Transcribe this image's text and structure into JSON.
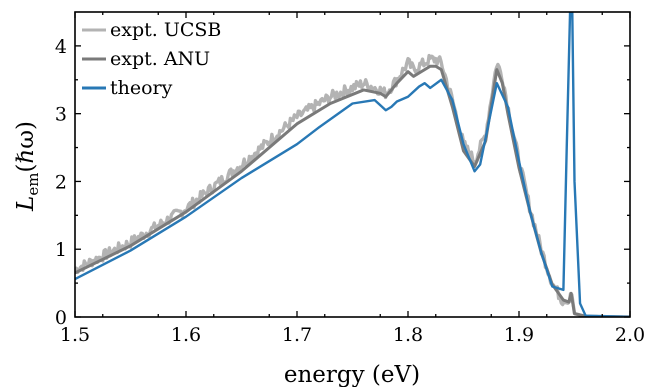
{
  "chart_data": {
    "type": "line",
    "xlabel": "energy (eV)",
    "ylabel": "L",
    "ylabel_sub": "em",
    "ylabel_arg": "(ℏω)",
    "xlim": [
      1.5,
      2.0
    ],
    "ylim": [
      0,
      4.5
    ],
    "xticks": [
      1.5,
      1.6,
      1.7,
      1.8,
      1.9,
      2.0
    ],
    "xtick_labels": [
      "1.5",
      "1.6",
      "1.7",
      "1.8",
      "1.9",
      "2.0"
    ],
    "yticks": [
      0,
      1,
      2,
      3,
      4
    ],
    "ytick_labels": [
      "0",
      "1",
      "2",
      "3",
      "4"
    ],
    "grid": false,
    "legend_position": "top-left",
    "series": [
      {
        "name": "expt. UCSB",
        "color": "#b3b3b3",
        "noisy": true,
        "x": [
          1.5,
          1.55,
          1.6,
          1.65,
          1.7,
          1.73,
          1.76,
          1.775,
          1.78,
          1.79,
          1.8,
          1.805,
          1.81,
          1.82,
          1.825,
          1.83,
          1.84,
          1.85,
          1.86,
          1.87,
          1.88,
          1.885,
          1.89,
          1.9,
          1.91,
          1.92,
          1.93,
          1.94,
          1.945,
          1.947,
          1.95,
          1.96,
          2.0
        ],
        "y": [
          0.7,
          1.1,
          1.6,
          2.25,
          2.95,
          3.25,
          3.45,
          3.35,
          3.3,
          3.5,
          3.75,
          3.65,
          3.7,
          3.8,
          3.8,
          3.75,
          3.2,
          2.55,
          2.3,
          2.7,
          3.75,
          3.55,
          3.1,
          2.3,
          1.6,
          1.0,
          0.5,
          0.22,
          0.2,
          0.4,
          0.05,
          0.01,
          0.0
        ]
      },
      {
        "name": "expt. ANU",
        "color": "#7a7a7a",
        "noisy": false,
        "x": [
          1.5,
          1.55,
          1.6,
          1.65,
          1.7,
          1.73,
          1.76,
          1.775,
          1.78,
          1.79,
          1.8,
          1.805,
          1.81,
          1.82,
          1.825,
          1.83,
          1.84,
          1.85,
          1.86,
          1.87,
          1.88,
          1.885,
          1.89,
          1.9,
          1.91,
          1.92,
          1.93,
          1.94,
          1.945,
          1.947,
          1.95,
          1.96,
          2.0
        ],
        "y": [
          0.65,
          1.05,
          1.55,
          2.15,
          2.85,
          3.15,
          3.35,
          3.3,
          3.25,
          3.45,
          3.62,
          3.55,
          3.6,
          3.7,
          3.7,
          3.65,
          3.1,
          2.45,
          2.22,
          2.6,
          3.65,
          3.45,
          3.0,
          2.2,
          1.55,
          0.95,
          0.48,
          0.25,
          0.22,
          0.35,
          0.05,
          0.01,
          0.0
        ]
      },
      {
        "name": "theory",
        "color": "#2878b5",
        "noisy": false,
        "x": [
          1.5,
          1.55,
          1.6,
          1.65,
          1.7,
          1.72,
          1.75,
          1.77,
          1.78,
          1.785,
          1.79,
          1.8,
          1.81,
          1.815,
          1.82,
          1.83,
          1.84,
          1.85,
          1.86,
          1.865,
          1.87,
          1.88,
          1.89,
          1.9,
          1.91,
          1.92,
          1.93,
          1.94,
          1.943,
          1.946,
          1.948,
          1.95,
          1.955,
          1.96,
          2.0
        ],
        "y": [
          0.56,
          0.98,
          1.48,
          2.05,
          2.55,
          2.8,
          3.15,
          3.2,
          3.05,
          3.1,
          3.18,
          3.25,
          3.4,
          3.45,
          3.38,
          3.5,
          3.2,
          2.55,
          2.15,
          2.25,
          2.65,
          3.45,
          3.1,
          2.3,
          1.55,
          0.95,
          0.45,
          0.4,
          2.5,
          4.5,
          4.5,
          2.0,
          0.2,
          0.02,
          0.0
        ]
      }
    ]
  }
}
